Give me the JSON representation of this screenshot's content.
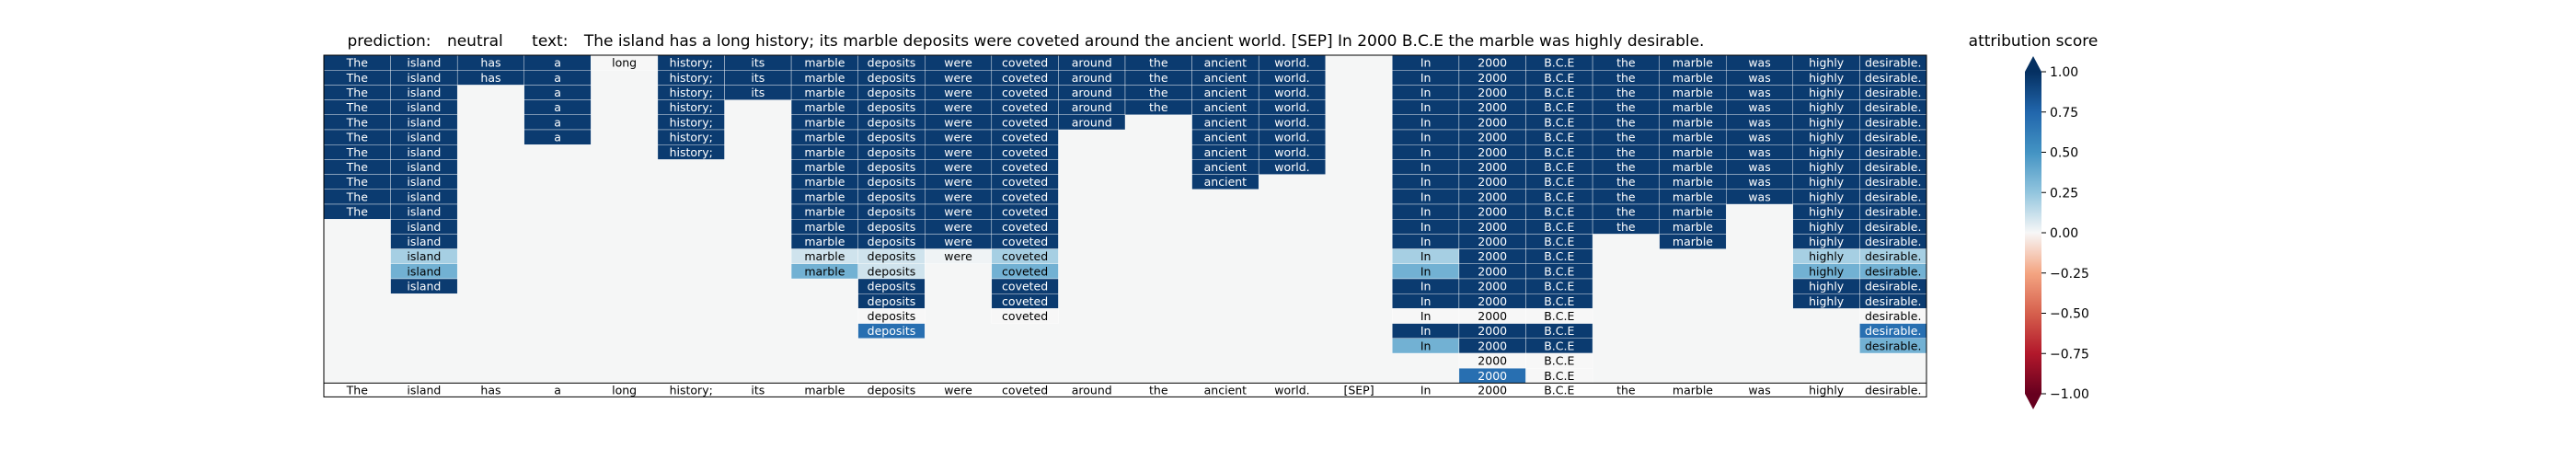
{
  "chart_data": {
    "type": "heatmap",
    "title": {
      "prediction_label": "prediction:",
      "prediction_value": "neutral",
      "text_label": "text:",
      "text_value": "The island has a long history; its marble deposits were coveted around the ancient world. [SEP] In 2000 B.C.E the marble was highly desirable."
    },
    "tokens": [
      "The",
      "island",
      "has",
      "a",
      "long",
      "history;",
      "its",
      "marble",
      "deposits",
      "were",
      "coveted",
      "around",
      "the",
      "ancient",
      "world.",
      "[SEP]",
      "In",
      "2000",
      "B.C.E",
      "the",
      "marble",
      "was",
      "highly",
      "desirable."
    ],
    "layers": [
      [
        "The",
        "island",
        "has",
        "a",
        "long",
        "history;",
        "its",
        "marble",
        "deposits",
        "were",
        "coveted",
        "around",
        "the",
        "ancient",
        "world.",
        null,
        "In",
        "2000",
        "B.C.E",
        "the",
        "marble",
        "was",
        "highly",
        "desirable."
      ],
      [
        "The",
        "island",
        "has",
        "a",
        null,
        "history;",
        "its",
        "marble",
        "deposits",
        "were",
        "coveted",
        "around",
        "the",
        "ancient",
        "world.",
        null,
        "In",
        "2000",
        "B.C.E",
        "the",
        "marble",
        "was",
        "highly",
        "desirable."
      ],
      [
        "The",
        "island",
        null,
        "a",
        null,
        "history;",
        "its",
        "marble",
        "deposits",
        "were",
        "coveted",
        "around",
        "the",
        "ancient",
        "world.",
        null,
        "In",
        "2000",
        "B.C.E",
        "the",
        "marble",
        "was",
        "highly",
        "desirable."
      ],
      [
        "The",
        "island",
        null,
        "a",
        null,
        "history;",
        null,
        "marble",
        "deposits",
        "were",
        "coveted",
        "around",
        "the",
        "ancient",
        "world.",
        null,
        "In",
        "2000",
        "B.C.E",
        "the",
        "marble",
        "was",
        "highly",
        "desirable."
      ],
      [
        "The",
        "island",
        null,
        "a",
        null,
        "history;",
        null,
        "marble",
        "deposits",
        "were",
        "coveted",
        "around",
        null,
        "ancient",
        "world.",
        null,
        "In",
        "2000",
        "B.C.E",
        "the",
        "marble",
        "was",
        "highly",
        "desirable."
      ],
      [
        "The",
        "island",
        null,
        "a",
        null,
        "history;",
        null,
        "marble",
        "deposits",
        "were",
        "coveted",
        null,
        null,
        "ancient",
        "world.",
        null,
        "In",
        "2000",
        "B.C.E",
        "the",
        "marble",
        "was",
        "highly",
        "desirable."
      ],
      [
        "The",
        "island",
        null,
        null,
        null,
        "history;",
        null,
        "marble",
        "deposits",
        "were",
        "coveted",
        null,
        null,
        "ancient",
        "world.",
        null,
        "In",
        "2000",
        "B.C.E",
        "the",
        "marble",
        "was",
        "highly",
        "desirable."
      ],
      [
        "The",
        "island",
        null,
        null,
        null,
        null,
        null,
        "marble",
        "deposits",
        "were",
        "coveted",
        null,
        null,
        "ancient",
        "world.",
        null,
        "In",
        "2000",
        "B.C.E",
        "the",
        "marble",
        "was",
        "highly",
        "desirable."
      ],
      [
        "The",
        "island",
        null,
        null,
        null,
        null,
        null,
        "marble",
        "deposits",
        "were",
        "coveted",
        null,
        null,
        "ancient",
        null,
        null,
        "In",
        "2000",
        "B.C.E",
        "the",
        "marble",
        "was",
        "highly",
        "desirable."
      ],
      [
        "The",
        "island",
        null,
        null,
        null,
        null,
        null,
        "marble",
        "deposits",
        "were",
        "coveted",
        null,
        null,
        null,
        null,
        null,
        "In",
        "2000",
        "B.C.E",
        "the",
        "marble",
        "was",
        "highly",
        "desirable."
      ],
      [
        "The",
        "island",
        null,
        null,
        null,
        null,
        null,
        "marble",
        "deposits",
        "were",
        "coveted",
        null,
        null,
        null,
        null,
        null,
        "In",
        "2000",
        "B.C.E",
        "the",
        "marble",
        null,
        "highly",
        "desirable."
      ],
      [
        null,
        "island",
        null,
        null,
        null,
        null,
        null,
        "marble",
        "deposits",
        "were",
        "coveted",
        null,
        null,
        null,
        null,
        null,
        "In",
        "2000",
        "B.C.E",
        "the",
        "marble",
        null,
        "highly",
        "desirable."
      ],
      [
        null,
        "island",
        null,
        null,
        null,
        null,
        null,
        "marble",
        "deposits",
        "were",
        "coveted",
        null,
        null,
        null,
        null,
        null,
        "In",
        "2000",
        "B.C.E",
        null,
        "marble",
        null,
        "highly",
        "desirable."
      ],
      [
        null,
        "island",
        null,
        null,
        null,
        null,
        null,
        "marble",
        "deposits",
        "were",
        "coveted",
        null,
        null,
        null,
        null,
        null,
        "In",
        "2000",
        "B.C.E",
        null,
        null,
        null,
        "highly",
        "desirable."
      ],
      [
        null,
        "island",
        null,
        null,
        null,
        null,
        null,
        "marble",
        "deposits",
        null,
        "coveted",
        null,
        null,
        null,
        null,
        null,
        "In",
        "2000",
        "B.C.E",
        null,
        null,
        null,
        "highly",
        "desirable."
      ],
      [
        null,
        "island",
        null,
        null,
        null,
        null,
        null,
        null,
        "deposits",
        null,
        "coveted",
        null,
        null,
        null,
        null,
        null,
        "In",
        "2000",
        "B.C.E",
        null,
        null,
        null,
        "highly",
        "desirable."
      ],
      [
        null,
        null,
        null,
        null,
        null,
        null,
        null,
        null,
        "deposits",
        null,
        "coveted",
        null,
        null,
        null,
        null,
        null,
        "In",
        "2000",
        "B.C.E",
        null,
        null,
        null,
        "highly",
        "desirable."
      ],
      [
        null,
        null,
        null,
        null,
        null,
        null,
        null,
        null,
        "deposits",
        null,
        "coveted",
        null,
        null,
        null,
        null,
        null,
        "In",
        "2000",
        "B.C.E",
        null,
        null,
        null,
        null,
        "desirable."
      ],
      [
        null,
        null,
        null,
        null,
        null,
        null,
        null,
        null,
        "deposits",
        null,
        null,
        null,
        null,
        null,
        null,
        null,
        "In",
        "2000",
        "B.C.E",
        null,
        null,
        null,
        null,
        "desirable."
      ],
      [
        null,
        null,
        null,
        null,
        null,
        null,
        null,
        null,
        null,
        null,
        null,
        null,
        null,
        null,
        null,
        null,
        "In",
        "2000",
        "B.C.E",
        null,
        null,
        null,
        null,
        "desirable."
      ],
      [
        null,
        null,
        null,
        null,
        null,
        null,
        null,
        null,
        null,
        null,
        null,
        null,
        null,
        null,
        null,
        null,
        null,
        "2000",
        "B.C.E",
        null,
        null,
        null,
        null,
        null
      ],
      [
        null,
        null,
        null,
        null,
        null,
        null,
        null,
        null,
        null,
        null,
        null,
        null,
        null,
        null,
        null,
        null,
        null,
        "2000",
        "B.C.E",
        null,
        null,
        null,
        null,
        null
      ]
    ],
    "values": [
      [
        0.95,
        0.95,
        0.95,
        0.95,
        0.0,
        0.95,
        0.95,
        0.95,
        0.95,
        0.95,
        0.95,
        0.95,
        0.95,
        0.95,
        0.95,
        null,
        0.95,
        0.95,
        0.95,
        0.95,
        0.95,
        0.95,
        0.95,
        0.95
      ],
      [
        0.95,
        0.95,
        0.95,
        0.95,
        null,
        0.95,
        0.95,
        0.95,
        0.95,
        0.95,
        0.95,
        0.95,
        0.95,
        0.95,
        0.95,
        null,
        0.95,
        0.95,
        0.95,
        0.95,
        0.95,
        0.95,
        0.95,
        0.95
      ],
      [
        0.95,
        0.95,
        null,
        0.95,
        null,
        0.95,
        0.95,
        0.95,
        0.95,
        0.95,
        0.95,
        0.95,
        0.95,
        0.95,
        0.95,
        null,
        0.95,
        0.95,
        0.95,
        0.95,
        0.95,
        0.95,
        0.95,
        0.95
      ],
      [
        0.95,
        0.95,
        null,
        0.95,
        null,
        0.95,
        null,
        0.95,
        0.95,
        0.95,
        0.95,
        0.95,
        0.95,
        0.95,
        0.95,
        null,
        0.95,
        0.95,
        0.95,
        0.95,
        0.95,
        0.95,
        0.95,
        0.95
      ],
      [
        0.95,
        0.95,
        null,
        0.95,
        null,
        0.95,
        null,
        0.95,
        0.95,
        0.95,
        0.95,
        0.95,
        null,
        0.95,
        0.95,
        null,
        0.95,
        0.95,
        0.95,
        0.95,
        0.95,
        0.95,
        0.95,
        0.95
      ],
      [
        0.95,
        0.95,
        null,
        0.95,
        null,
        0.95,
        null,
        0.95,
        0.95,
        0.95,
        0.95,
        null,
        null,
        0.95,
        0.95,
        null,
        0.95,
        0.95,
        0.95,
        0.95,
        0.95,
        0.95,
        0.95,
        0.95
      ],
      [
        0.95,
        0.95,
        null,
        null,
        null,
        0.95,
        null,
        0.95,
        0.95,
        0.95,
        0.95,
        null,
        null,
        0.95,
        0.95,
        null,
        0.95,
        0.95,
        0.95,
        0.95,
        0.95,
        0.95,
        0.95,
        0.95
      ],
      [
        0.95,
        0.95,
        null,
        null,
        null,
        null,
        null,
        0.95,
        0.95,
        0.95,
        0.95,
        null,
        null,
        0.95,
        0.95,
        null,
        0.95,
        0.95,
        0.95,
        0.95,
        0.95,
        0.95,
        0.95,
        0.95
      ],
      [
        0.95,
        0.95,
        null,
        null,
        null,
        null,
        null,
        0.95,
        0.95,
        0.95,
        0.95,
        null,
        null,
        0.95,
        null,
        null,
        0.95,
        0.95,
        0.95,
        0.95,
        0.95,
        0.95,
        0.95,
        0.95
      ],
      [
        0.95,
        0.95,
        null,
        null,
        null,
        null,
        null,
        0.95,
        0.95,
        0.95,
        0.95,
        null,
        null,
        null,
        null,
        null,
        0.95,
        0.95,
        0.95,
        0.95,
        0.95,
        0.95,
        0.95,
        0.95
      ],
      [
        0.95,
        0.95,
        null,
        null,
        null,
        null,
        null,
        0.95,
        0.95,
        0.95,
        0.95,
        null,
        null,
        null,
        null,
        null,
        0.95,
        0.95,
        0.95,
        0.95,
        0.95,
        null,
        0.95,
        0.95
      ],
      [
        null,
        0.95,
        null,
        null,
        null,
        null,
        null,
        0.95,
        0.95,
        0.95,
        0.95,
        null,
        null,
        null,
        null,
        null,
        0.95,
        0.95,
        0.95,
        0.95,
        0.95,
        null,
        0.95,
        0.95
      ],
      [
        null,
        0.95,
        null,
        null,
        null,
        null,
        null,
        0.95,
        0.95,
        0.95,
        0.95,
        null,
        null,
        null,
        null,
        null,
        0.95,
        0.95,
        0.95,
        null,
        0.95,
        null,
        0.95,
        0.95
      ],
      [
        null,
        0.2,
        null,
        null,
        null,
        null,
        null,
        0.1,
        0.1,
        0.02,
        0.2,
        null,
        null,
        null,
        null,
        null,
        0.2,
        0.95,
        0.95,
        null,
        null,
        null,
        0.2,
        0.2
      ],
      [
        null,
        0.35,
        null,
        null,
        null,
        null,
        null,
        0.35,
        0.1,
        null,
        0.35,
        null,
        null,
        null,
        null,
        null,
        0.35,
        0.95,
        0.95,
        null,
        null,
        null,
        0.35,
        0.35
      ],
      [
        null,
        0.95,
        null,
        null,
        null,
        null,
        null,
        null,
        0.95,
        null,
        0.95,
        null,
        null,
        null,
        null,
        null,
        0.95,
        0.95,
        0.95,
        null,
        null,
        null,
        0.95,
        0.95
      ],
      [
        null,
        null,
        null,
        null,
        null,
        null,
        null,
        null,
        0.95,
        null,
        0.95,
        null,
        null,
        null,
        null,
        null,
        0.95,
        0.95,
        0.95,
        null,
        null,
        null,
        0.95,
        0.95
      ],
      [
        null,
        null,
        null,
        null,
        null,
        null,
        null,
        null,
        0.0,
        null,
        0.0,
        null,
        null,
        null,
        null,
        null,
        0.0,
        0.0,
        0.0,
        null,
        null,
        null,
        null,
        0.0
      ],
      [
        null,
        null,
        null,
        null,
        null,
        null,
        null,
        null,
        0.7,
        null,
        null,
        null,
        null,
        null,
        null,
        null,
        0.95,
        0.95,
        0.95,
        null,
        null,
        null,
        null,
        0.7
      ],
      [
        null,
        null,
        null,
        null,
        null,
        null,
        null,
        null,
        null,
        null,
        null,
        null,
        null,
        null,
        null,
        null,
        0.35,
        0.95,
        0.95,
        null,
        null,
        null,
        null,
        0.35
      ],
      [
        null,
        null,
        null,
        null,
        null,
        null,
        null,
        null,
        null,
        null,
        null,
        null,
        null,
        null,
        null,
        null,
        null,
        0.0,
        0.0,
        null,
        null,
        null,
        null,
        null
      ],
      [
        null,
        null,
        null,
        null,
        null,
        null,
        null,
        null,
        null,
        null,
        null,
        null,
        null,
        null,
        null,
        null,
        null,
        0.7,
        0.0,
        null,
        null,
        null,
        null,
        null
      ]
    ],
    "colorbar": {
      "title": "attribution score",
      "ticks": [
        "1.00",
        "0.75",
        "0.50",
        "0.25",
        "0.00",
        "−0.25",
        "−0.50",
        "−0.75",
        "−1.00"
      ],
      "range": [
        -1,
        1
      ]
    }
  }
}
